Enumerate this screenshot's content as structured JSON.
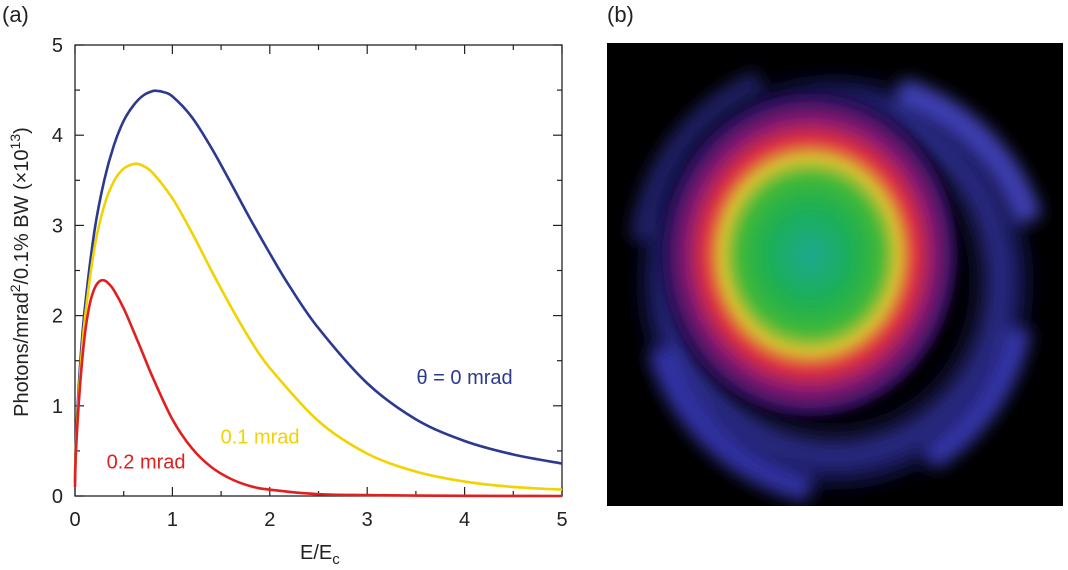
{
  "panels": {
    "a": "(a)",
    "b": "(b)"
  },
  "chart_data": {
    "type": "line",
    "xlabel": "E/E",
    "xlabel_sub": "c",
    "ylabel": "Photons/mrad",
    "ylabel_sup": "2",
    "ylabel_mid": "/0.1% BW (×10",
    "ylabel_exp": "13",
    "ylabel_end": ")",
    "xlim": [
      0,
      5
    ],
    "ylim": [
      0,
      5
    ],
    "xticks": [
      "0",
      "1",
      "2",
      "3",
      "4",
      "5"
    ],
    "yticks": [
      "0",
      "1",
      "2",
      "3",
      "4",
      "5"
    ],
    "grid": false,
    "series": [
      {
        "name": "θ = 0 mrad",
        "color": "#2b3990",
        "x": [
          0,
          0.01,
          0.05,
          0.1,
          0.2,
          0.3,
          0.4,
          0.5,
          0.6,
          0.7,
          0.8,
          0.85,
          0.9,
          1.0,
          1.2,
          1.4,
          1.6,
          1.8,
          2.0,
          2.2,
          2.5,
          3.0,
          3.5,
          4.0,
          4.5,
          5.0
        ],
        "y": [
          0.15,
          0.6,
          1.41,
          2.07,
          2.94,
          3.5,
          3.89,
          4.16,
          4.33,
          4.44,
          4.49,
          4.49,
          4.48,
          4.43,
          4.2,
          3.86,
          3.47,
          3.07,
          2.69,
          2.33,
          1.86,
          1.25,
          0.85,
          0.61,
          0.46,
          0.36
        ]
      },
      {
        "name": "0.1 mrad",
        "color": "#f2d200",
        "x": [
          0,
          0.01,
          0.05,
          0.1,
          0.2,
          0.3,
          0.4,
          0.5,
          0.6,
          0.65,
          0.7,
          0.8,
          1.0,
          1.2,
          1.4,
          1.6,
          1.8,
          2.0,
          2.5,
          3.0,
          3.5,
          4.0,
          4.5,
          5.0
        ],
        "y": [
          0.15,
          0.55,
          1.3,
          1.95,
          2.75,
          3.22,
          3.49,
          3.63,
          3.68,
          3.68,
          3.66,
          3.58,
          3.3,
          2.92,
          2.5,
          2.1,
          1.73,
          1.42,
          0.83,
          0.47,
          0.27,
          0.16,
          0.1,
          0.07
        ]
      },
      {
        "name": "0.2 mrad",
        "color": "#e02020",
        "x": [
          0,
          0.01,
          0.05,
          0.1,
          0.15,
          0.2,
          0.25,
          0.3,
          0.35,
          0.4,
          0.5,
          0.6,
          0.7,
          0.8,
          1.0,
          1.2,
          1.4,
          1.6,
          1.8,
          2.0,
          2.5,
          3.0,
          3.5,
          4.0,
          4.5,
          5.0
        ],
        "y": [
          0.1,
          0.5,
          1.2,
          1.78,
          2.12,
          2.3,
          2.38,
          2.39,
          2.35,
          2.28,
          2.08,
          1.83,
          1.57,
          1.31,
          0.85,
          0.53,
          0.32,
          0.19,
          0.11,
          0.07,
          0.02,
          0.01,
          0.005,
          0.002,
          0.001,
          0.0
        ]
      }
    ],
    "annotations": [
      {
        "text": "θ = 0 mrad",
        "x": 4.0,
        "y": 1.32,
        "color": "#2b3990"
      },
      {
        "text": "0.1 mrad",
        "x": 1.9,
        "y": 0.66,
        "color": "#f2d200"
      },
      {
        "text": "0.2 mrad",
        "x": 0.73,
        "y": 0.38,
        "color": "#e02020"
      }
    ]
  },
  "image_panel": {
    "description_colors": {
      "background": "#000000",
      "outer_ring": "#3a3aa8",
      "red_ring": "#d81840",
      "yellow_ring": "#c8c830",
      "core": "#18a860"
    }
  }
}
